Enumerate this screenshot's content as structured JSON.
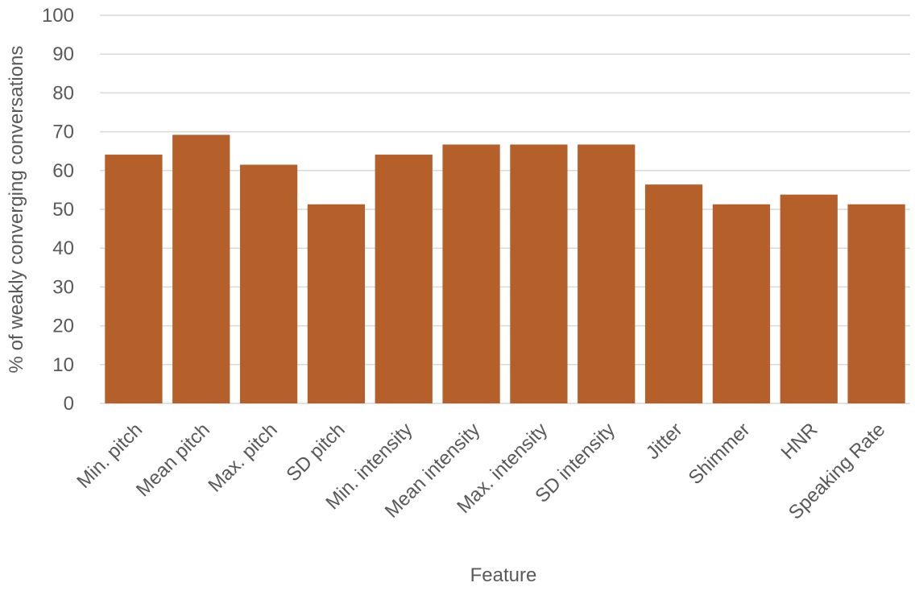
{
  "chart_data": {
    "type": "bar",
    "x_label": "Feature",
    "y_label": "% of weakly converging conversations",
    "categories": [
      "Min. pitch",
      "Mean pitch",
      "Max. pitch",
      "SD pitch",
      "Min. intensity",
      "Mean intensity",
      "Max. intensity",
      "SD intensity",
      "Jitter",
      "Shimmer",
      "HNR",
      "Speaking Rate"
    ],
    "values": [
      64.1,
      69.2,
      61.5,
      51.3,
      64.1,
      66.7,
      66.7,
      66.7,
      56.4,
      51.3,
      53.8,
      51.3
    ],
    "color": "#b5602b",
    "ylim": [
      0,
      100
    ],
    "yticks": [
      0,
      10,
      20,
      30,
      40,
      50,
      60,
      70,
      80,
      90,
      100
    ],
    "grid": true
  }
}
